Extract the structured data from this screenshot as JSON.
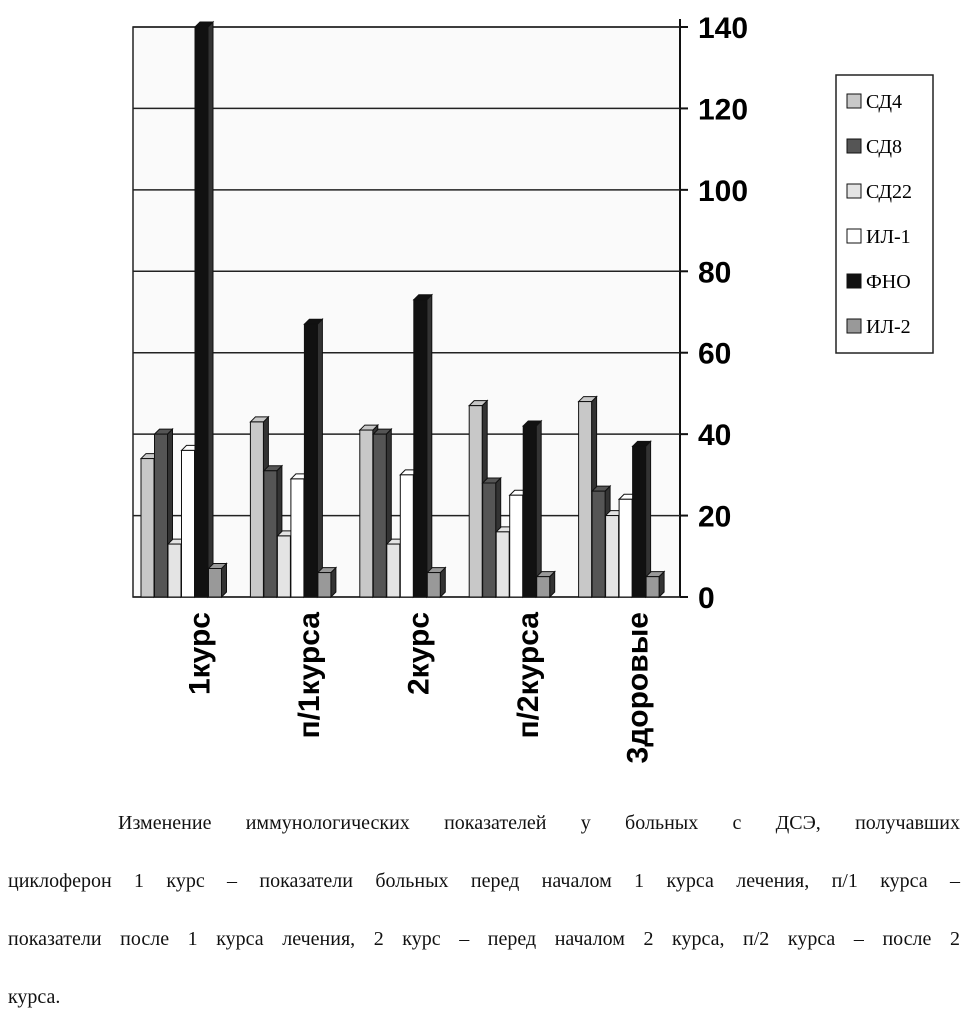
{
  "chart_data": {
    "type": "bar",
    "categories": [
      "1курс",
      "п/1курса",
      "2курс",
      "п/2курса",
      "3доровые"
    ],
    "series": [
      {
        "name": "СД4",
        "color": "#c8c8c8",
        "values": [
          34,
          43,
          41,
          47,
          48
        ]
      },
      {
        "name": "СД8",
        "color": "#555555",
        "values": [
          40,
          31,
          40,
          28,
          26
        ]
      },
      {
        "name": "СД22",
        "color": "#e4e4e4",
        "values": [
          13,
          15,
          13,
          16,
          20
        ]
      },
      {
        "name": "ИЛ-1",
        "color": "#ffffff",
        "values": [
          36,
          29,
          30,
          25,
          24
        ]
      },
      {
        "name": "ФНО",
        "color": "#111111",
        "values": [
          140,
          67,
          73,
          42,
          37
        ]
      },
      {
        "name": "ИЛ-2",
        "color": "#999999",
        "values": [
          7,
          6,
          6,
          5,
          5
        ]
      }
    ],
    "ylim": [
      0,
      140
    ],
    "yticks": [
      0,
      20,
      40,
      60,
      80,
      100,
      120,
      140
    ],
    "grid": true,
    "legend": "right"
  },
  "caption": [
    "Изменение иммунологических показателей у больных с ДСЭ, получавших",
    "циклоферон 1 курс – показатели больных перед началом 1 курса лечения, п/1 курса –",
    "показатели после 1 курса лечения, 2 курс – перед началом 2 курса, п/2 курса – после 2",
    "курса."
  ]
}
